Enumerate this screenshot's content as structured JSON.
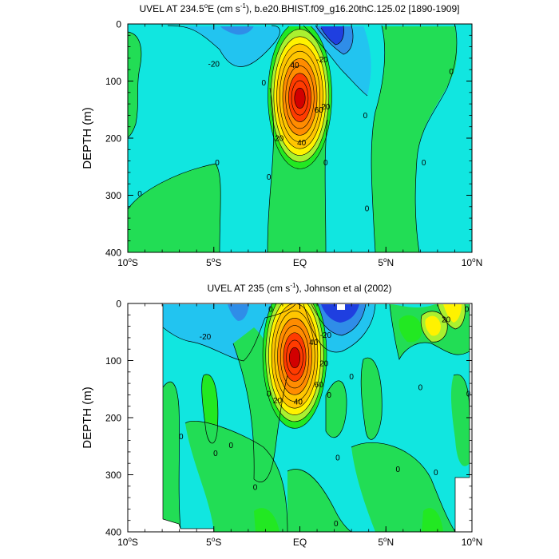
{
  "colors": {
    "neg3": "#1f3fe0",
    "neg2": "#2f8de8",
    "neg1": "#22c4f0",
    "zero_neg": "#11e6e0",
    "zero_pos": "#1ee0b8",
    "pos1": "#22dd55",
    "pos2": "#22e822",
    "green_yellow": "#aaf030",
    "yellow": "#fff200",
    "orange": "#ffc600",
    "orange2": "#ff8c00",
    "red": "#ff3b00",
    "darkred": "#d20000"
  },
  "chart_data": [
    {
      "type": "heatmap",
      "title": "UVEL AT 234.5°E (cm s⁻¹), b.e20.BHIST.f09_g16.20thC.125.02 [1890-1909]",
      "title_parts": [
        "UVEL AT 234.5",
        "o",
        "E (cm s",
        "-1",
        "), b.e20.BHIST.f09_g16.20thC.125.02 [1890-1909]"
      ],
      "xlabel": "",
      "ylabel": "DEPTH (m)",
      "x_ticks": [
        "10°S",
        "5°S",
        "EQ",
        "5°N",
        "10°N"
      ],
      "x_tick_values": [
        -10,
        -5,
        0,
        5,
        10
      ],
      "y_ticks": [
        "0",
        "100",
        "200",
        "300",
        "400"
      ],
      "y_tick_values": [
        0,
        100,
        200,
        300,
        400
      ],
      "xlim": [
        -10,
        10
      ],
      "ylim": [
        0,
        400
      ],
      "y_inverted": true,
      "contour_interval": 10,
      "core": {
        "lat": 0,
        "depth": 125,
        "max_value": 100
      },
      "contour_labels": [
        {
          "text": "-20",
          "lat": -5,
          "depth": 70
        },
        {
          "text": "-20",
          "lat": 1.3,
          "depth": 62
        },
        {
          "text": "40",
          "lat": -0.3,
          "depth": 72
        },
        {
          "text": "60",
          "lat": 1.1,
          "depth": 150
        },
        {
          "text": "20",
          "lat": 1.5,
          "depth": 145
        },
        {
          "text": "20",
          "lat": -1.2,
          "depth": 200
        },
        {
          "text": "40",
          "lat": 0.1,
          "depth": 208
        },
        {
          "text": "0",
          "lat": -2.1,
          "depth": 103
        },
        {
          "text": "0",
          "lat": -9.3,
          "depth": 297
        },
        {
          "text": "0",
          "lat": -4.8,
          "depth": 243
        },
        {
          "text": "0",
          "lat": -1.8,
          "depth": 268
        },
        {
          "text": "0",
          "lat": 1.5,
          "depth": 243
        },
        {
          "text": "0",
          "lat": 3.8,
          "depth": 160
        },
        {
          "text": "0",
          "lat": 3.9,
          "depth": 323
        },
        {
          "text": "0",
          "lat": 7.2,
          "depth": 243
        },
        {
          "text": "0",
          "lat": 8.8,
          "depth": 83
        }
      ]
    },
    {
      "type": "heatmap",
      "title": "UVEL AT 235 (cm s⁻¹), Johnson et al (2002)",
      "title_parts": [
        "UVEL AT 235 (cm s",
        "-1",
        "), Johnson et al (2002)"
      ],
      "xlabel": "",
      "ylabel": "DEPTH (m)",
      "x_ticks": [
        "10°S",
        "5°S",
        "EQ",
        "5°N",
        "10°N"
      ],
      "x_tick_values": [
        -10,
        -5,
        0,
        5,
        10
      ],
      "y_ticks": [
        "0",
        "100",
        "200",
        "300",
        "400"
      ],
      "y_tick_values": [
        0,
        100,
        200,
        300,
        400
      ],
      "xlim": [
        -10,
        10
      ],
      "ylim": [
        0,
        400
      ],
      "y_inverted": true,
      "contour_interval": 10,
      "core": {
        "lat": -0.3,
        "depth": 90,
        "max_value": 110
      },
      "contour_labels": [
        {
          "text": "-20",
          "lat": -5.5,
          "depth": 58
        },
        {
          "text": "-20",
          "lat": 1.5,
          "depth": 55
        },
        {
          "text": "40",
          "lat": 0.8,
          "depth": 68
        },
        {
          "text": "60",
          "lat": 1.1,
          "depth": 142
        },
        {
          "text": "20",
          "lat": 1.4,
          "depth": 105
        },
        {
          "text": "20",
          "lat": -1.3,
          "depth": 170
        },
        {
          "text": "40",
          "lat": -0.1,
          "depth": 172
        },
        {
          "text": "20",
          "lat": 8.5,
          "depth": 28
        },
        {
          "text": "0",
          "lat": -1.7,
          "depth": 10
        },
        {
          "text": "0",
          "lat": -1.8,
          "depth": 158
        },
        {
          "text": "0",
          "lat": 1.7,
          "depth": 160
        },
        {
          "text": "0",
          "lat": 3.0,
          "depth": 128
        },
        {
          "text": "0",
          "lat": 7.0,
          "depth": 147
        },
        {
          "text": "0",
          "lat": 9.8,
          "depth": 158
        },
        {
          "text": "0",
          "lat": 9.7,
          "depth": 10
        },
        {
          "text": "0",
          "lat": -6.9,
          "depth": 233
        },
        {
          "text": "0",
          "lat": -4.9,
          "depth": 262
        },
        {
          "text": "0",
          "lat": -4.0,
          "depth": 248
        },
        {
          "text": "0",
          "lat": -2.6,
          "depth": 322
        },
        {
          "text": "0",
          "lat": 2.2,
          "depth": 270
        },
        {
          "text": "0",
          "lat": 2.1,
          "depth": 385
        },
        {
          "text": "0",
          "lat": 5.7,
          "depth": 290
        },
        {
          "text": "0",
          "lat": 7.9,
          "depth": 296
        }
      ]
    }
  ]
}
